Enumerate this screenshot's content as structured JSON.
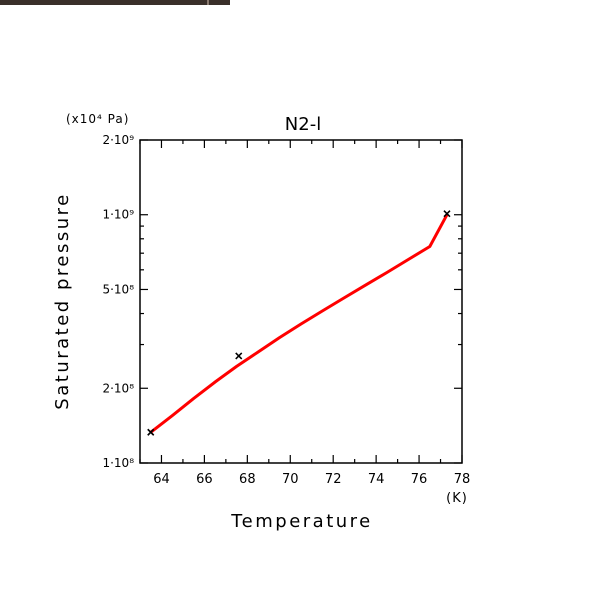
{
  "chart_data": {
    "type": "line",
    "title": "N2-l",
    "xlabel": "Temperature",
    "ylabel": "Saturated pressure",
    "x_unit": "(K)",
    "y_unit": "(x10⁴ Pa)",
    "xlim": [
      63,
      78
    ],
    "ylim": [
      100000000,
      2000000000
    ],
    "y_scale": "log",
    "grid": false,
    "x_ticks": [
      {
        "value": 64,
        "label": "64"
      },
      {
        "value": 66,
        "label": "66"
      },
      {
        "value": 68,
        "label": "68"
      },
      {
        "value": 70,
        "label": "70"
      },
      {
        "value": 72,
        "label": "72"
      },
      {
        "value": 74,
        "label": "74"
      },
      {
        "value": 76,
        "label": "76"
      },
      {
        "value": 78,
        "label": "78"
      }
    ],
    "y_ticks": [
      {
        "value": 100000000,
        "label": "1·10⁸"
      },
      {
        "value": 200000000,
        "label": "2·10⁸"
      },
      {
        "value": 500000000,
        "label": "5·10⁸"
      },
      {
        "value": 1000000000,
        "label": "1·10⁹"
      },
      {
        "value": 2000000000,
        "label": "2·10⁹"
      }
    ],
    "series": [
      {
        "color": "#ff0000",
        "x": [
          63.5,
          64.5,
          65.5,
          66.5,
          67.5,
          68.5,
          69.5,
          70.5,
          71.5,
          72.5,
          73.5,
          74.5,
          75.5,
          76.5,
          77.3
        ],
        "y": [
          133000000,
          155000000,
          182000000,
          212000000,
          245000000,
          280000000,
          320000000,
          363000000,
          410000000,
          462000000,
          520000000,
          585000000,
          660000000,
          745000000,
          1000000000
        ]
      }
    ],
    "markers": [
      {
        "x": 63.5,
        "y": 133000000
      },
      {
        "x": 67.6,
        "y": 270000000
      },
      {
        "x": 77.3,
        "y": 1010000000
      }
    ]
  }
}
